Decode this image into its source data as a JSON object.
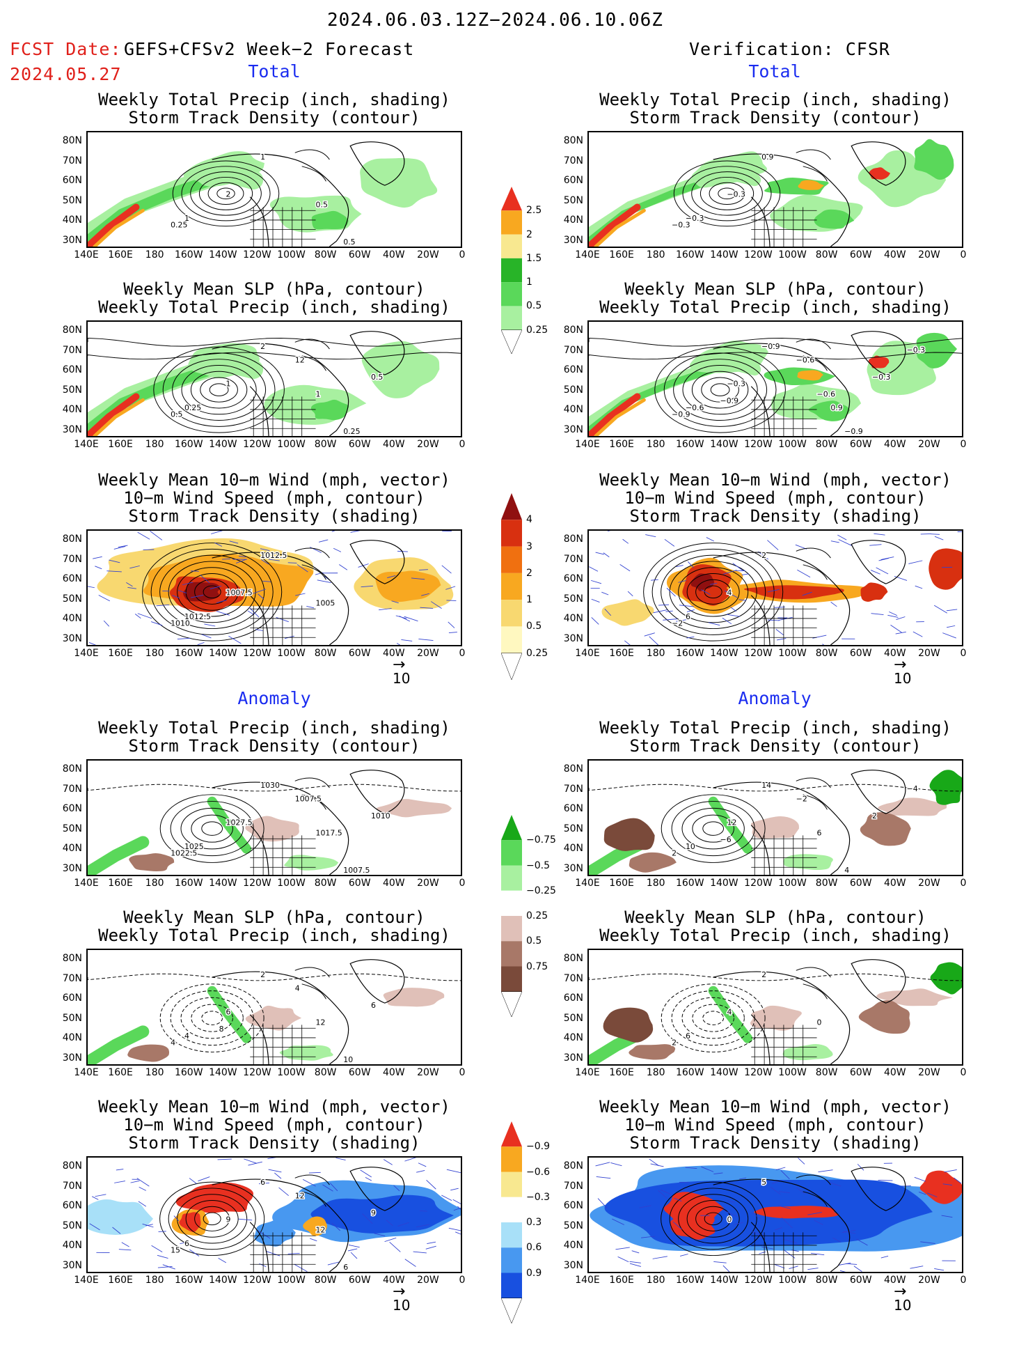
{
  "header": {
    "date_range": "2024.06.03.12Z−2024.06.10.06Z",
    "fcst_label": "FCST Date:",
    "forecast_name": "GEFS+CFSv2 Week−2 Forecast",
    "fcst_date": "2024.05.27",
    "verification": "Verification: CFSR"
  },
  "sections": {
    "total": "Total",
    "anomaly": "Anomaly"
  },
  "titles": {
    "precip_storm": [
      "Weekly Total Precip (inch, shading)",
      "Storm Track Density (contour)"
    ],
    "slp_precip": [
      "Weekly Mean SLP (hPa, contour)",
      "Weekly Total Precip (inch, shading)"
    ],
    "wind_storm": [
      "Weekly Mean 10−m Wind (mph, vector)",
      "10−m Wind Speed (mph, contour)",
      "Storm Track Density (shading)"
    ]
  },
  "axes": {
    "lat_labels": [
      "80N",
      "70N",
      "60N",
      "50N",
      "40N",
      "30N"
    ],
    "lon_labels": [
      "140E",
      "160E",
      "180",
      "160W",
      "140W",
      "120W",
      "100W",
      "80W",
      "60W",
      "40W",
      "20W",
      "0"
    ]
  },
  "vector_ref": "10",
  "colorbars": {
    "total_precip": {
      "colors": [
        "#a8f0a0",
        "#5ad85a",
        "#28b428",
        "#f8e890",
        "#f8a820",
        "#e83020"
      ],
      "labels": [
        "0.25",
        "0.5",
        "1",
        "1.5",
        "2",
        "2.5"
      ]
    },
    "total_storm": {
      "colors": [
        "#fff8c0",
        "#f8d870",
        "#f8a820",
        "#f07010",
        "#d83010",
        "#901010"
      ],
      "labels": [
        "0.25",
        "0.5",
        "1",
        "2",
        "3",
        "4"
      ]
    },
    "anom_precip": {
      "colors": [
        "#7a4a3a",
        "#a87868",
        "#e0c0b8",
        "#ffffff",
        "#a8f0a0",
        "#5ad85a",
        "#18a818"
      ],
      "labels": [
        "0.75",
        "0.5",
        "0.25",
        "−0.25",
        "−0.5",
        "−0.75"
      ]
    },
    "anom_storm": {
      "colors": [
        "#1850e0",
        "#4898f0",
        "#a8e0f8",
        "#ffffff",
        "#f8e890",
        "#f8a820",
        "#e83020"
      ],
      "labels": [
        "0.9",
        "0.6",
        "0.3",
        "−0.3",
        "−0.6",
        "−0.9"
      ]
    }
  },
  "panel_labels": {
    "p1": [
      "1",
      "2",
      "1",
      "0.25",
      "0.5",
      "0.5"
    ],
    "p2": [
      "2",
      "1",
      "0.25",
      "0.5",
      "1",
      "0.25",
      "0.5",
      "12"
    ],
    "p3": [
      "1012.5",
      "1007.5",
      "1012.5",
      "1010",
      "1005"
    ],
    "p4": [
      "1030",
      "1027.5",
      "1025",
      "1022.5",
      "1017.5",
      "1007.5",
      "1010",
      "1007.5"
    ],
    "p5": [
      "2",
      "6",
      "4",
      "4",
      "12",
      "10",
      "6",
      "4",
      "8"
    ],
    "p6": [
      "6",
      "9",
      "6",
      "15",
      "12",
      "6",
      "9",
      "12"
    ],
    "p7": [
      "0.9",
      "−0.3",
      "−0.3",
      "−0.3"
    ],
    "p8": [
      "−0.9",
      "−0.3",
      "−0.6",
      "−0.9",
      "−0.6",
      "−0.9",
      "−0.3",
      "−0.6",
      "−0.9",
      "−0.3",
      "0.9"
    ],
    "p9": [
      "2",
      "4",
      "6",
      "−2"
    ],
    "p10": [
      "14",
      "12",
      "10",
      "2",
      "6",
      "4",
      "2",
      "−2",
      "−6",
      "−4"
    ],
    "p11": [
      "2",
      "4",
      "6",
      "2",
      "0"
    ],
    "p12": [
      "5",
      "0"
    ]
  }
}
